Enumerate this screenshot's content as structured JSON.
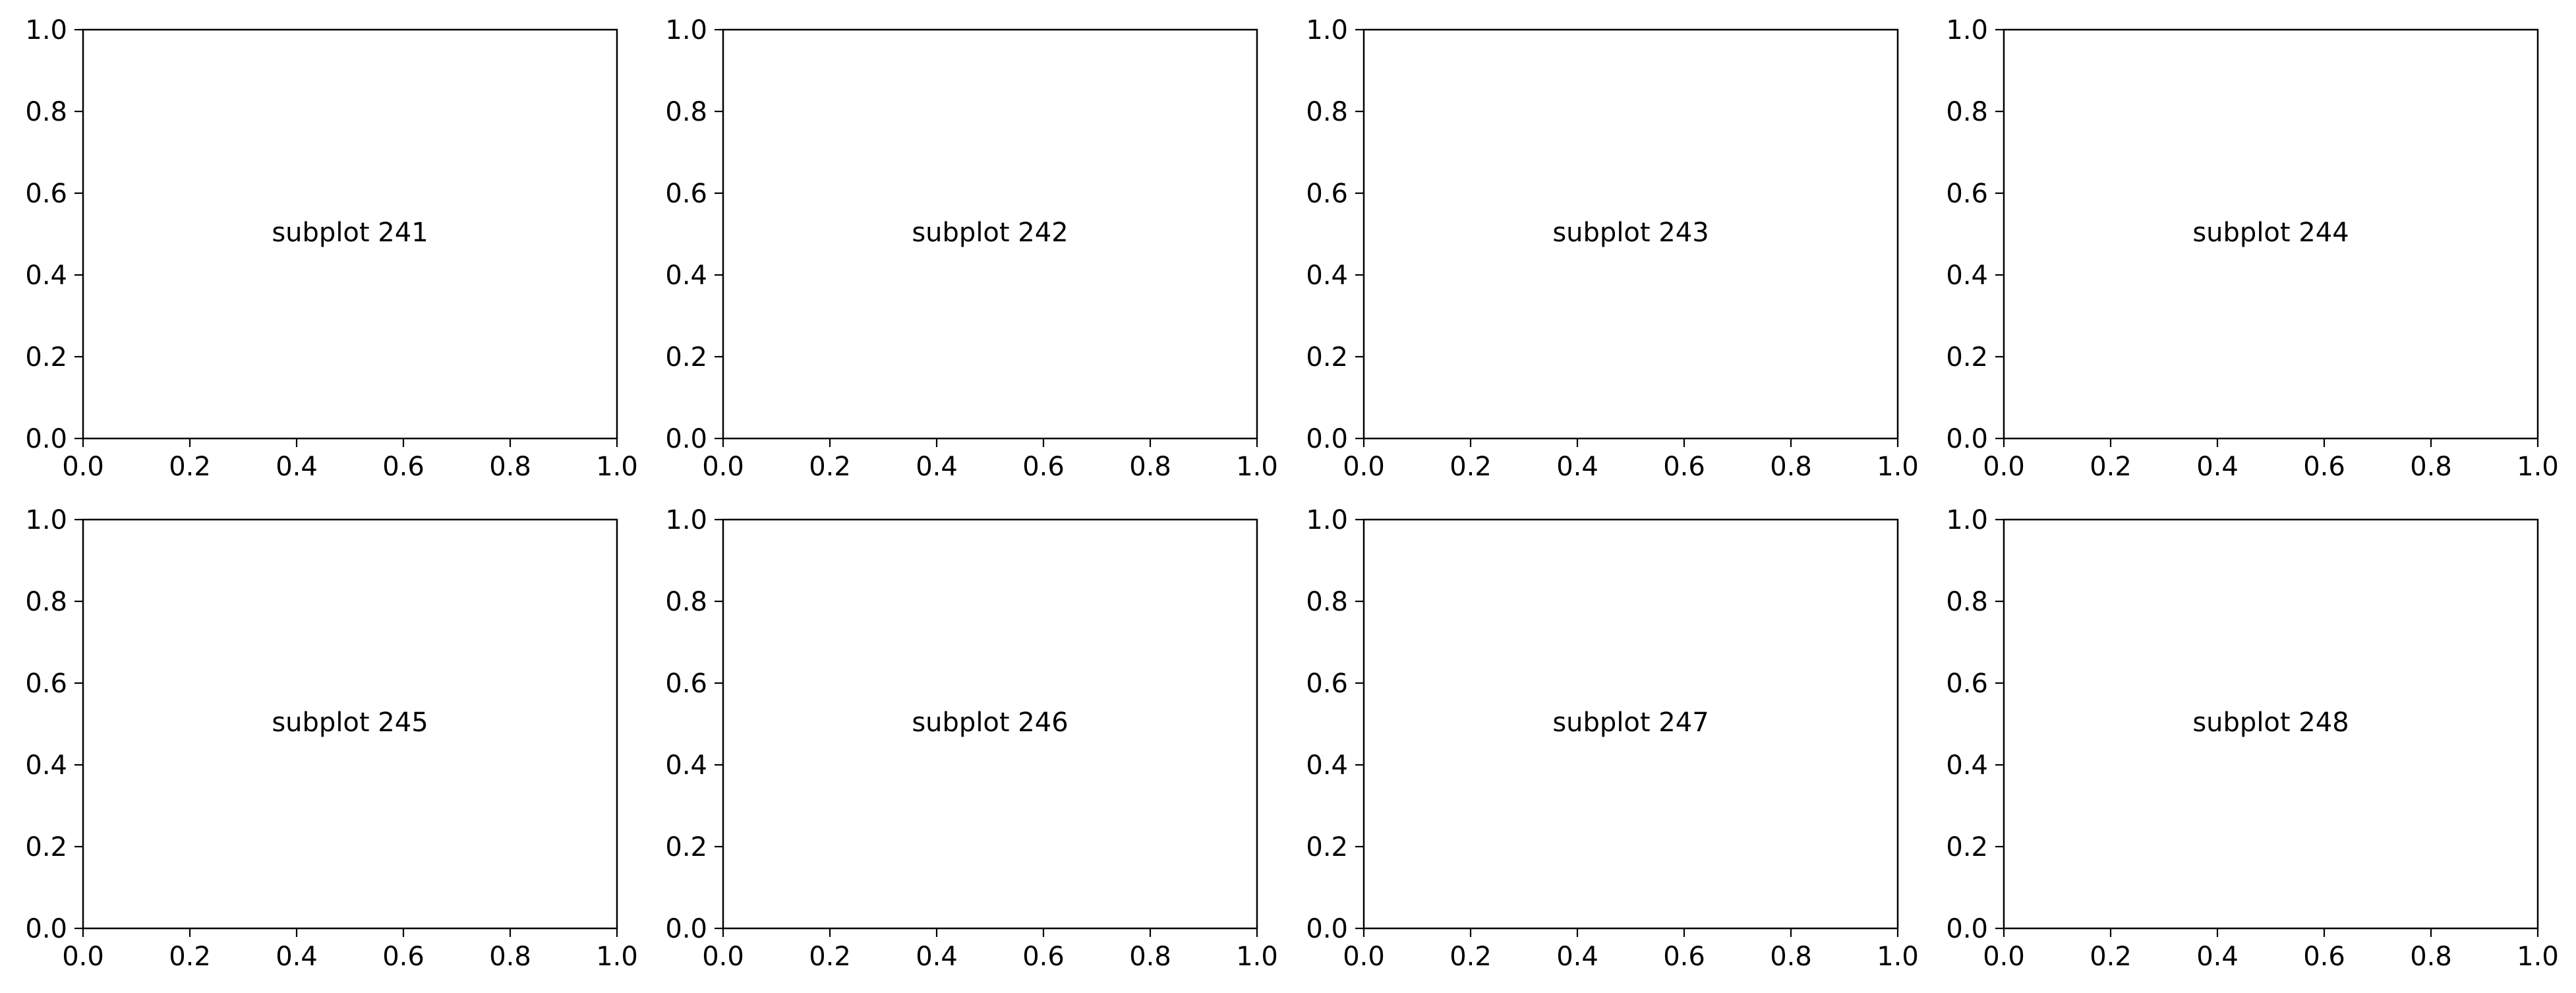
{
  "chart_data": [
    {
      "type": "scatter",
      "annotation": "subplot 241",
      "annotation_position": "center",
      "xlim": [
        0.0,
        1.0
      ],
      "ylim": [
        0.0,
        1.0
      ],
      "xticks": [
        "0.0",
        "0.2",
        "0.4",
        "0.6",
        "0.8",
        "1.0"
      ],
      "yticks": [
        "0.0",
        "0.2",
        "0.4",
        "0.6",
        "0.8",
        "1.0"
      ],
      "series": [],
      "grid": false
    },
    {
      "type": "scatter",
      "annotation": "subplot 242",
      "annotation_position": "center",
      "xlim": [
        0.0,
        1.0
      ],
      "ylim": [
        0.0,
        1.0
      ],
      "xticks": [
        "0.0",
        "0.2",
        "0.4",
        "0.6",
        "0.8",
        "1.0"
      ],
      "yticks": [
        "0.0",
        "0.2",
        "0.4",
        "0.6",
        "0.8",
        "1.0"
      ],
      "series": [],
      "grid": false
    },
    {
      "type": "scatter",
      "annotation": "subplot 243",
      "annotation_position": "center",
      "xlim": [
        0.0,
        1.0
      ],
      "ylim": [
        0.0,
        1.0
      ],
      "xticks": [
        "0.0",
        "0.2",
        "0.4",
        "0.6",
        "0.8",
        "1.0"
      ],
      "yticks": [
        "0.0",
        "0.2",
        "0.4",
        "0.6",
        "0.8",
        "1.0"
      ],
      "series": [],
      "grid": false
    },
    {
      "type": "scatter",
      "annotation": "subplot 244",
      "annotation_position": "center",
      "xlim": [
        0.0,
        1.0
      ],
      "ylim": [
        0.0,
        1.0
      ],
      "xticks": [
        "0.0",
        "0.2",
        "0.4",
        "0.6",
        "0.8",
        "1.0"
      ],
      "yticks": [
        "0.0",
        "0.2",
        "0.4",
        "0.6",
        "0.8",
        "1.0"
      ],
      "series": [],
      "grid": false
    },
    {
      "type": "scatter",
      "annotation": "subplot 245",
      "annotation_position": "center",
      "xlim": [
        0.0,
        1.0
      ],
      "ylim": [
        0.0,
        1.0
      ],
      "xticks": [
        "0.0",
        "0.2",
        "0.4",
        "0.6",
        "0.8",
        "1.0"
      ],
      "yticks": [
        "0.0",
        "0.2",
        "0.4",
        "0.6",
        "0.8",
        "1.0"
      ],
      "series": [],
      "grid": false
    },
    {
      "type": "scatter",
      "annotation": "subplot 246",
      "annotation_position": "center",
      "xlim": [
        0.0,
        1.0
      ],
      "ylim": [
        0.0,
        1.0
      ],
      "xticks": [
        "0.0",
        "0.2",
        "0.4",
        "0.6",
        "0.8",
        "1.0"
      ],
      "yticks": [
        "0.0",
        "0.2",
        "0.4",
        "0.6",
        "0.8",
        "1.0"
      ],
      "series": [],
      "grid": false
    },
    {
      "type": "scatter",
      "annotation": "subplot 247",
      "annotation_position": "center",
      "xlim": [
        0.0,
        1.0
      ],
      "ylim": [
        0.0,
        1.0
      ],
      "xticks": [
        "0.0",
        "0.2",
        "0.4",
        "0.6",
        "0.8",
        "1.0"
      ],
      "yticks": [
        "0.0",
        "0.2",
        "0.4",
        "0.6",
        "0.8",
        "1.0"
      ],
      "series": [],
      "grid": false
    },
    {
      "type": "scatter",
      "annotation": "subplot 248",
      "annotation_position": "center",
      "xlim": [
        0.0,
        1.0
      ],
      "ylim": [
        0.0,
        1.0
      ],
      "xticks": [
        "0.0",
        "0.2",
        "0.4",
        "0.6",
        "0.8",
        "1.0"
      ],
      "yticks": [
        "0.0",
        "0.2",
        "0.4",
        "0.6",
        "0.8",
        "1.0"
      ],
      "series": [],
      "grid": false
    }
  ],
  "colors": {
    "background": "#ffffff",
    "axes": "#000000",
    "text": "#000000"
  }
}
